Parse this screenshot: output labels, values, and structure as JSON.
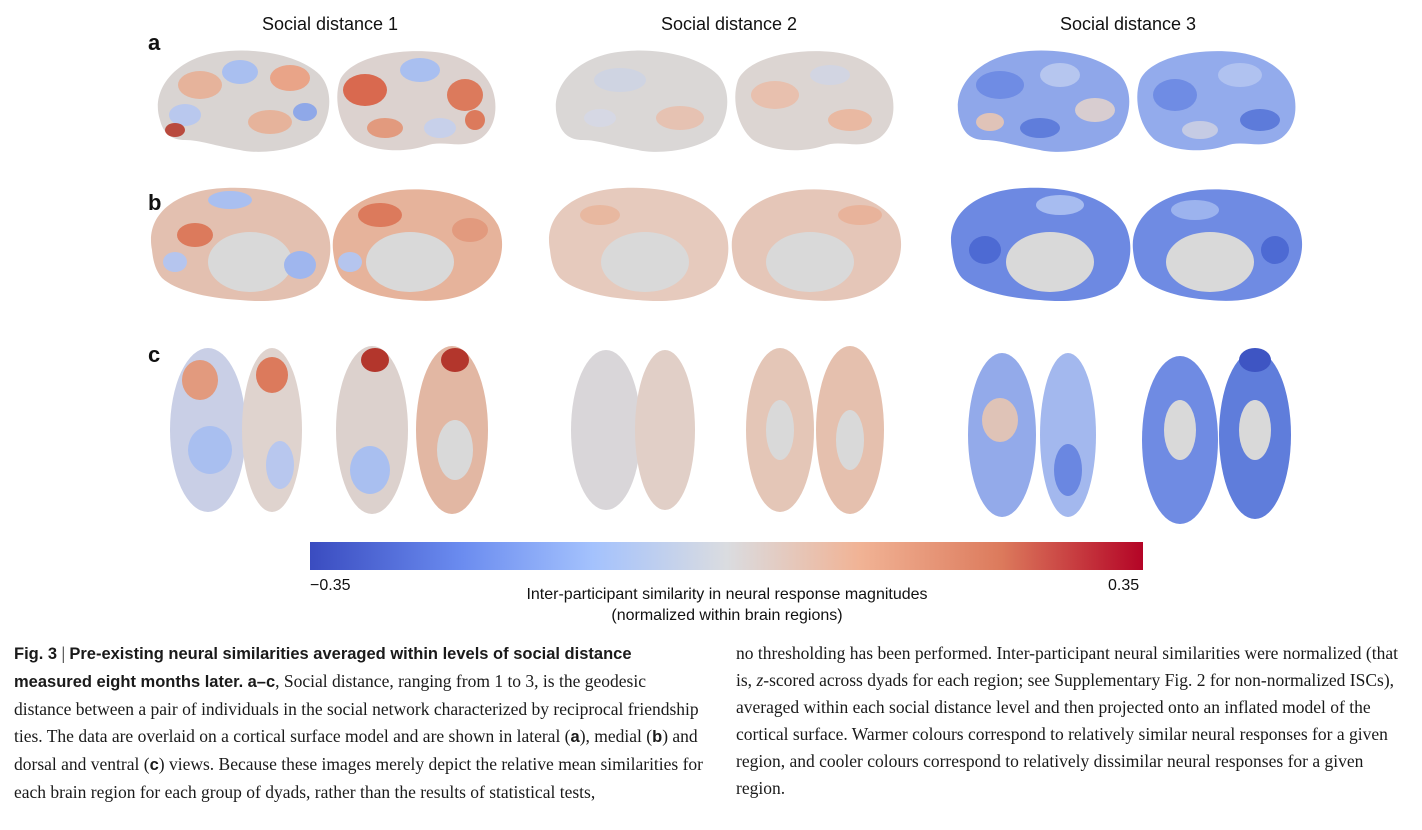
{
  "columns": [
    "Social distance 1",
    "Social distance 2",
    "Social distance 3"
  ],
  "rows": [
    "a",
    "b",
    "c"
  ],
  "colorbar": {
    "min_label": "−0.35",
    "max_label": "0.35",
    "label_line1": "Inter-participant similarity in neural response magnitudes",
    "label_line2": "(normalized within brain regions)",
    "colors": [
      "#3a4cc0",
      "#6a8bef",
      "#a4c2fd",
      "#dadce0",
      "#f1b395",
      "#dc7a5c",
      "#b40426"
    ]
  },
  "caption": {
    "fig_label": "Fig. 3",
    "separator": " | ",
    "bold_title": "Pre-existing neural similarities averaged within levels of social distance measured eight months later.",
    "panels_ref": "a–c",
    "text_1": ", Social distance, ranging from 1 to 3, is the geodesic distance between a pair of individuals in the social network characterized by reciprocal friendship ties. The data are overlaid on a cortical surface model and are shown in lateral (",
    "ref_a": "a",
    "text_2": "), medial (",
    "ref_b": "b",
    "text_3": ") and dorsal and ventral (",
    "ref_c": "c",
    "text_4": ") views. Because these images merely depict the relative mean similarities for each brain region for each group of dyads, rather than the results of statistical tests,",
    "right_1": "no thresholding has been performed. Inter-participant neural similarities were normalized (that is, ",
    "right_z": "z",
    "right_2": "-scored across dyads for each region; see Supplementary Fig. 2 for non-normalized ISCs), averaged within each social distance level and then projected onto an inflated model of the cortical surface. Warmer colours correspond to relatively similar neural responses for a given region, and cooler colours correspond to relatively dissimilar neural responses for a given region."
  }
}
